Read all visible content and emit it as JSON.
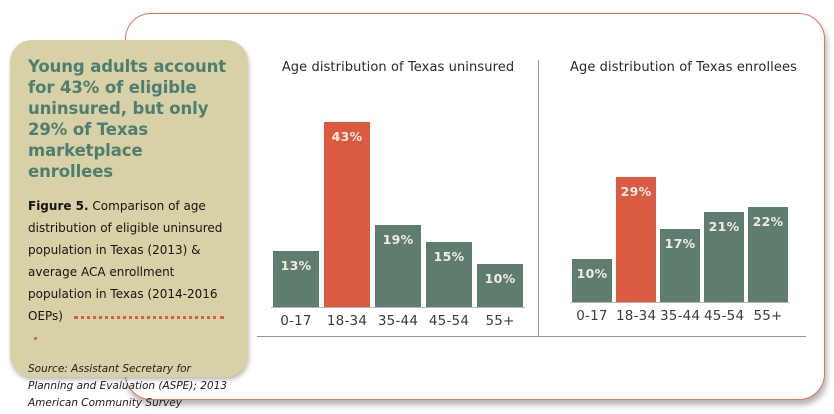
{
  "panel": {
    "headline": "Young adults account for 43% of eligible uninsured, but only 29% of Texas marketplace enrollees",
    "figure_label": "Figure 5.",
    "figure_caption": "Comparison of age distribution of eligible uninsured population in Texas (2013) & average ACA enrollment population in Texas (2014-2016 OEPs)",
    "source": "Source: Assistant Secretary for Planning and Evaluation (ASPE); 2013 American Community Survey"
  },
  "colors": {
    "bar_default": "#5e7d6f",
    "bar_highlight": "#da5b41",
    "card_border": "#e4745a",
    "panel_background": "#d8d1a5",
    "headline_text": "#4e7d72",
    "dotted_leader": "#d85b42",
    "rule_gray": "#979797"
  },
  "chart_data": [
    {
      "type": "bar",
      "title": "Age distribution of Texas uninsured",
      "categories": [
        "0-17",
        "18-34",
        "35-44",
        "45-54",
        "55+"
      ],
      "values": [
        13,
        43,
        19,
        15,
        10
      ],
      "value_labels": [
        "13%",
        "43%",
        "19%",
        "15%",
        "10%"
      ],
      "highlight_category": "18-34",
      "unit": "%",
      "ylim": [
        0,
        45
      ],
      "grid": false,
      "legend": false,
      "value_label_position": "inside-top"
    },
    {
      "type": "bar",
      "title": "Age distribution of Texas enrollees",
      "categories": [
        "0-17",
        "18-34",
        "35-44",
        "45-54",
        "55+"
      ],
      "values": [
        10,
        29,
        17,
        21,
        22
      ],
      "value_labels": [
        "10%",
        "29%",
        "17%",
        "21%",
        "22%"
      ],
      "highlight_category": "18-34",
      "unit": "%",
      "ylim": [
        0,
        45
      ],
      "grid": false,
      "legend": false,
      "value_label_position": "inside-top"
    }
  ]
}
